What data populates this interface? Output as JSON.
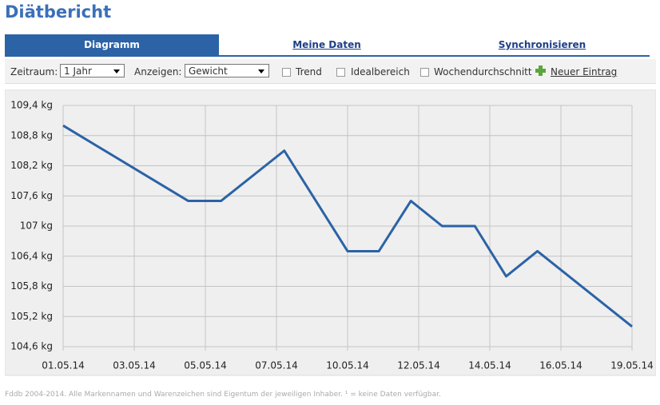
{
  "header": {
    "title": "Diätbericht"
  },
  "tabs": [
    "Diagramm",
    "Meine Daten",
    "Synchronisieren"
  ],
  "controls": {
    "zeitraum_label": "Zeitraum:",
    "zeitraum_value": "1 Jahr",
    "anzeigen_label": "Anzeigen:",
    "anzeigen_value": "Gewicht",
    "checkboxes": [
      "Trend",
      "Idealbereich",
      "Wochendurchschnitt"
    ],
    "new_entry": "Neuer Eintrag"
  },
  "chart_data": {
    "type": "line",
    "color": "#2b63a6",
    "grid": true,
    "x": [
      0,
      1.76,
      2.22,
      3.11,
      4.0,
      4.44,
      4.89,
      5.33,
      5.79,
      6.23,
      6.67,
      8.0
    ],
    "values": [
      109.0,
      107.5,
      107.5,
      108.5,
      106.5,
      106.5,
      107.5,
      107.0,
      107.0,
      106.0,
      106.5,
      105.0
    ],
    "xlim": [
      0,
      8
    ],
    "xticks": [
      {
        "value": 0,
        "label": "01.05.14"
      },
      {
        "value": 1,
        "label": "03.05.14"
      },
      {
        "value": 2,
        "label": "05.05.14"
      },
      {
        "value": 3,
        "label": "07.05.14"
      },
      {
        "value": 4,
        "label": "10.05.14"
      },
      {
        "value": 5,
        "label": "12.05.14"
      },
      {
        "value": 6,
        "label": "14.05.14"
      },
      {
        "value": 7,
        "label": "16.05.14"
      },
      {
        "value": 8,
        "label": "19.05.14"
      }
    ],
    "ylim": [
      104.6,
      109.4
    ],
    "yticks": [
      {
        "value": 104.6,
        "label": "104,6 kg"
      },
      {
        "value": 105.2,
        "label": "105,2 kg"
      },
      {
        "value": 105.8,
        "label": "105,8 kg"
      },
      {
        "value": 106.4,
        "label": "106,4 kg"
      },
      {
        "value": 107,
        "label": "107 kg"
      },
      {
        "value": 107.6,
        "label": "107,6 kg"
      },
      {
        "value": 108.2,
        "label": "108,2 kg"
      },
      {
        "value": 108.8,
        "label": "108,8 kg"
      },
      {
        "value": 109.4,
        "label": "109,4 kg"
      }
    ]
  },
  "footer": "Fddb 2004-2014. Alle Markennamen und Warenzeichen sind Eigentum der jeweiligen Inhaber. ¹ = keine Daten verfügbar."
}
